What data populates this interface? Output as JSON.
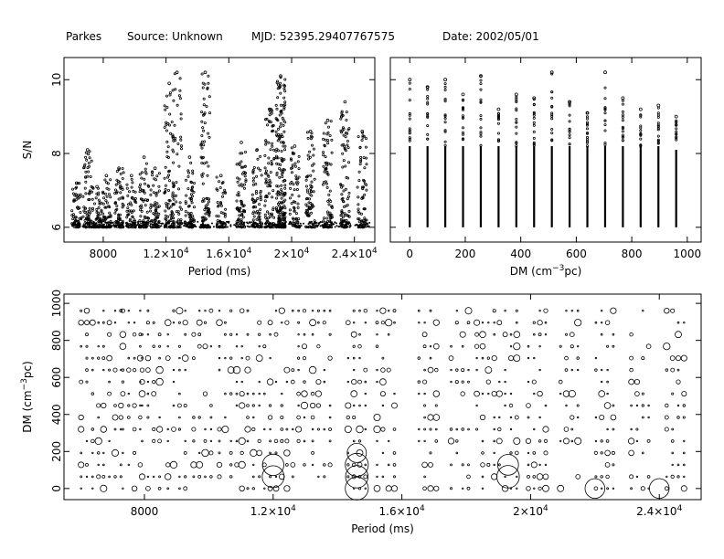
{
  "header": {
    "telescope": "Parkes",
    "source": "Source: Unknown",
    "mjd": "MJD: 52395.29407767575",
    "date": "Date: 2002/05/01"
  },
  "chart_data": [
    {
      "type": "scatter",
      "name_id": "snr-vs-period",
      "xlabel": "Period (ms)",
      "ylabel": "S/N",
      "xlim": [
        5500,
        25300
      ],
      "ylim": [
        5.6,
        10.6
      ],
      "xticks": [
        {
          "value": 8000,
          "label": "8000"
        },
        {
          "value": 12000,
          "label": "1.2×10",
          "exp": "4"
        },
        {
          "value": 16000,
          "label": "1.6×10",
          "exp": "4"
        },
        {
          "value": 20000,
          "label": "2×10",
          "exp": "4"
        },
        {
          "value": 24000,
          "label": "2.4×10",
          "exp": "4"
        }
      ],
      "yticks": [
        6,
        8,
        10
      ],
      "clusters": [
        {
          "period": 6300,
          "max_snr": 7.2,
          "n": 60
        },
        {
          "period": 7000,
          "max_snr": 8.1,
          "n": 70
        },
        {
          "period": 7600,
          "max_snr": 7.1,
          "n": 60
        },
        {
          "period": 8200,
          "max_snr": 7.4,
          "n": 60
        },
        {
          "period": 9000,
          "max_snr": 7.6,
          "n": 70
        },
        {
          "period": 9800,
          "max_snr": 7.4,
          "n": 60
        },
        {
          "period": 10600,
          "max_snr": 7.9,
          "n": 70
        },
        {
          "period": 11300,
          "max_snr": 7.6,
          "n": 60
        },
        {
          "period": 12200,
          "max_snr": 9.9,
          "n": 90
        },
        {
          "period": 12700,
          "max_snr": 10.2,
          "n": 60
        },
        {
          "period": 13500,
          "max_snr": 7.9,
          "n": 70
        },
        {
          "period": 14500,
          "max_snr": 10.2,
          "n": 100
        },
        {
          "period": 15500,
          "max_snr": 7.4,
          "n": 50
        },
        {
          "period": 16800,
          "max_snr": 8.3,
          "n": 70
        },
        {
          "period": 17800,
          "max_snr": 8.1,
          "n": 70
        },
        {
          "period": 18600,
          "max_snr": 9.2,
          "n": 90
        },
        {
          "period": 19300,
          "max_snr": 10.1,
          "n": 200
        },
        {
          "period": 20200,
          "max_snr": 8.2,
          "n": 70
        },
        {
          "period": 21200,
          "max_snr": 8.6,
          "n": 80
        },
        {
          "period": 22300,
          "max_snr": 8.9,
          "n": 90
        },
        {
          "period": 23400,
          "max_snr": 9.4,
          "n": 90
        },
        {
          "period": 24500,
          "max_snr": 8.6,
          "n": 70
        }
      ]
    },
    {
      "type": "scatter",
      "name_id": "snr-vs-dm",
      "xlabel": "DM (cm",
      "xlabel_exp": "−3",
      "xlabel_tail": "pc)",
      "ylabel": "",
      "xlim": [
        -70,
        1050
      ],
      "ylim": [
        5.6,
        10.6
      ],
      "xticks": [
        0,
        200,
        400,
        600,
        800,
        1000
      ],
      "yticks": [
        6,
        8,
        10
      ],
      "columns": [
        {
          "dm": 0,
          "max_snr": 10.0
        },
        {
          "dm": 64,
          "max_snr": 9.8
        },
        {
          "dm": 128,
          "max_snr": 10.0
        },
        {
          "dm": 192,
          "max_snr": 9.6
        },
        {
          "dm": 256,
          "max_snr": 10.1
        },
        {
          "dm": 320,
          "max_snr": 9.2
        },
        {
          "dm": 384,
          "max_snr": 9.6
        },
        {
          "dm": 448,
          "max_snr": 9.5
        },
        {
          "dm": 512,
          "max_snr": 10.2
        },
        {
          "dm": 576,
          "max_snr": 9.4
        },
        {
          "dm": 640,
          "max_snr": 9.1
        },
        {
          "dm": 704,
          "max_snr": 10.2
        },
        {
          "dm": 768,
          "max_snr": 9.5
        },
        {
          "dm": 832,
          "max_snr": 9.2
        },
        {
          "dm": 896,
          "max_snr": 9.3
        },
        {
          "dm": 960,
          "max_snr": 9.0
        }
      ]
    },
    {
      "type": "scatter",
      "name_id": "dm-vs-period",
      "xlabel": "Period (ms)",
      "ylabel": "DM (cm",
      "ylabel_exp": "−3",
      "ylabel_tail": "pc)",
      "xlim": [
        5500,
        25300
      ],
      "ylim": [
        -60,
        1050
      ],
      "xticks": [
        {
          "value": 8000,
          "label": "8000"
        },
        {
          "value": 12000,
          "label": "1.2×10",
          "exp": "4"
        },
        {
          "value": 16000,
          "label": "1.6×10",
          "exp": "4"
        },
        {
          "value": 20000,
          "label": "2×10",
          "exp": "4"
        },
        {
          "value": 24000,
          "label": "2.4×10",
          "exp": "4"
        }
      ],
      "yticks": [
        0,
        200,
        400,
        600,
        800,
        1000
      ],
      "marker_note": "circle size proportional to S/N",
      "big_circles": [
        {
          "period": 12000,
          "dm": 64,
          "snr": 10.0
        },
        {
          "period": 12000,
          "dm": 128,
          "snr": 9.9
        },
        {
          "period": 14600,
          "dm": 0,
          "snr": 10.2
        },
        {
          "period": 14600,
          "dm": 64,
          "snr": 10.1
        },
        {
          "period": 14600,
          "dm": 128,
          "snr": 10.2
        },
        {
          "period": 14600,
          "dm": 192,
          "snr": 9.5
        },
        {
          "period": 19300,
          "dm": 64,
          "snr": 10.1
        },
        {
          "period": 19300,
          "dm": 128,
          "snr": 9.8
        },
        {
          "period": 22000,
          "dm": 0,
          "snr": 9.6
        },
        {
          "period": 24000,
          "dm": 0,
          "snr": 9.6
        }
      ]
    }
  ]
}
